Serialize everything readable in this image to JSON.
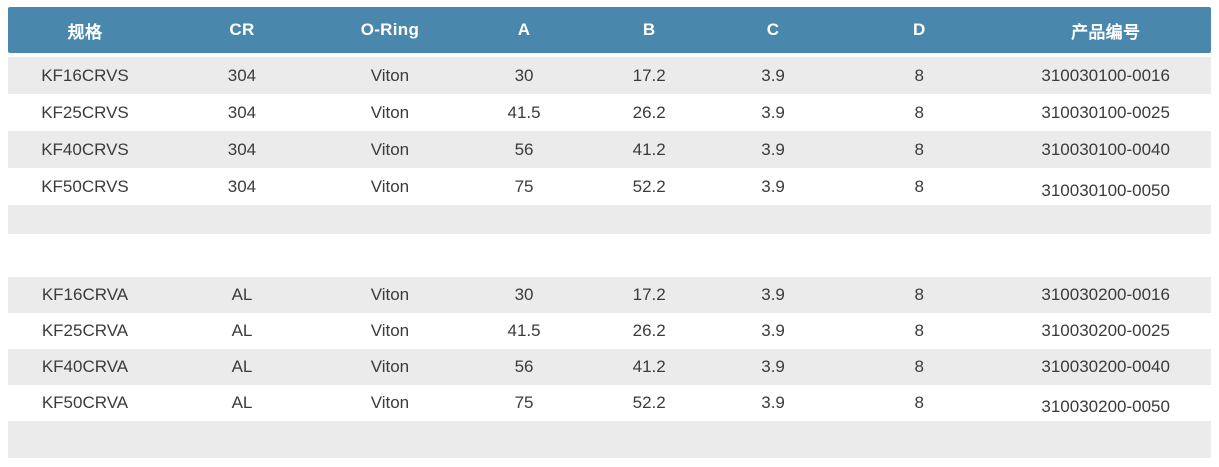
{
  "table": {
    "columns": [
      {
        "key": "spec",
        "label": "规格"
      },
      {
        "key": "cr",
        "label": "CR"
      },
      {
        "key": "oring",
        "label": "O-Ring"
      },
      {
        "key": "a",
        "label": "A"
      },
      {
        "key": "b",
        "label": "B"
      },
      {
        "key": "c",
        "label": "C"
      },
      {
        "key": "d",
        "label": "D"
      },
      {
        "key": "part",
        "label": "产品编号"
      }
    ],
    "groups": [
      {
        "rows": [
          [
            "KF16CRVS",
            "304",
            "Viton",
            "30",
            "17.2",
            "3.9",
            "8",
            "310030100-0016"
          ],
          [
            "KF25CRVS",
            "304",
            "Viton",
            "41.5",
            "26.2",
            "3.9",
            "8",
            "310030100-0025"
          ],
          [
            "KF40CRVS",
            "304",
            "Viton",
            "56",
            "41.2",
            "3.9",
            "8",
            "310030100-0040"
          ],
          [
            "KF50CRVS",
            "304",
            "Viton",
            "75",
            "52.2",
            "3.9",
            "8",
            "310030100-0050"
          ]
        ]
      },
      {
        "rows": [
          [
            "KF16CRVA",
            "AL",
            "Viton",
            "30",
            "17.2",
            "3.9",
            "8",
            "310030200-0016"
          ],
          [
            "KF25CRVA",
            "AL",
            "Viton",
            "41.5",
            "26.2",
            "3.9",
            "8",
            "310030200-0025"
          ],
          [
            "KF40CRVA",
            "AL",
            "Viton",
            "56",
            "41.2",
            "3.9",
            "8",
            "310030200-0040"
          ],
          [
            "KF50CRVA",
            "AL",
            "Viton",
            "75",
            "52.2",
            "3.9",
            "8",
            "310030200-0050"
          ]
        ]
      }
    ],
    "colors": {
      "header_bg": "#4a87ad",
      "header_text": "#ffffff",
      "stripe": "#ebebeb",
      "body_text": "#3b3b3b"
    }
  }
}
